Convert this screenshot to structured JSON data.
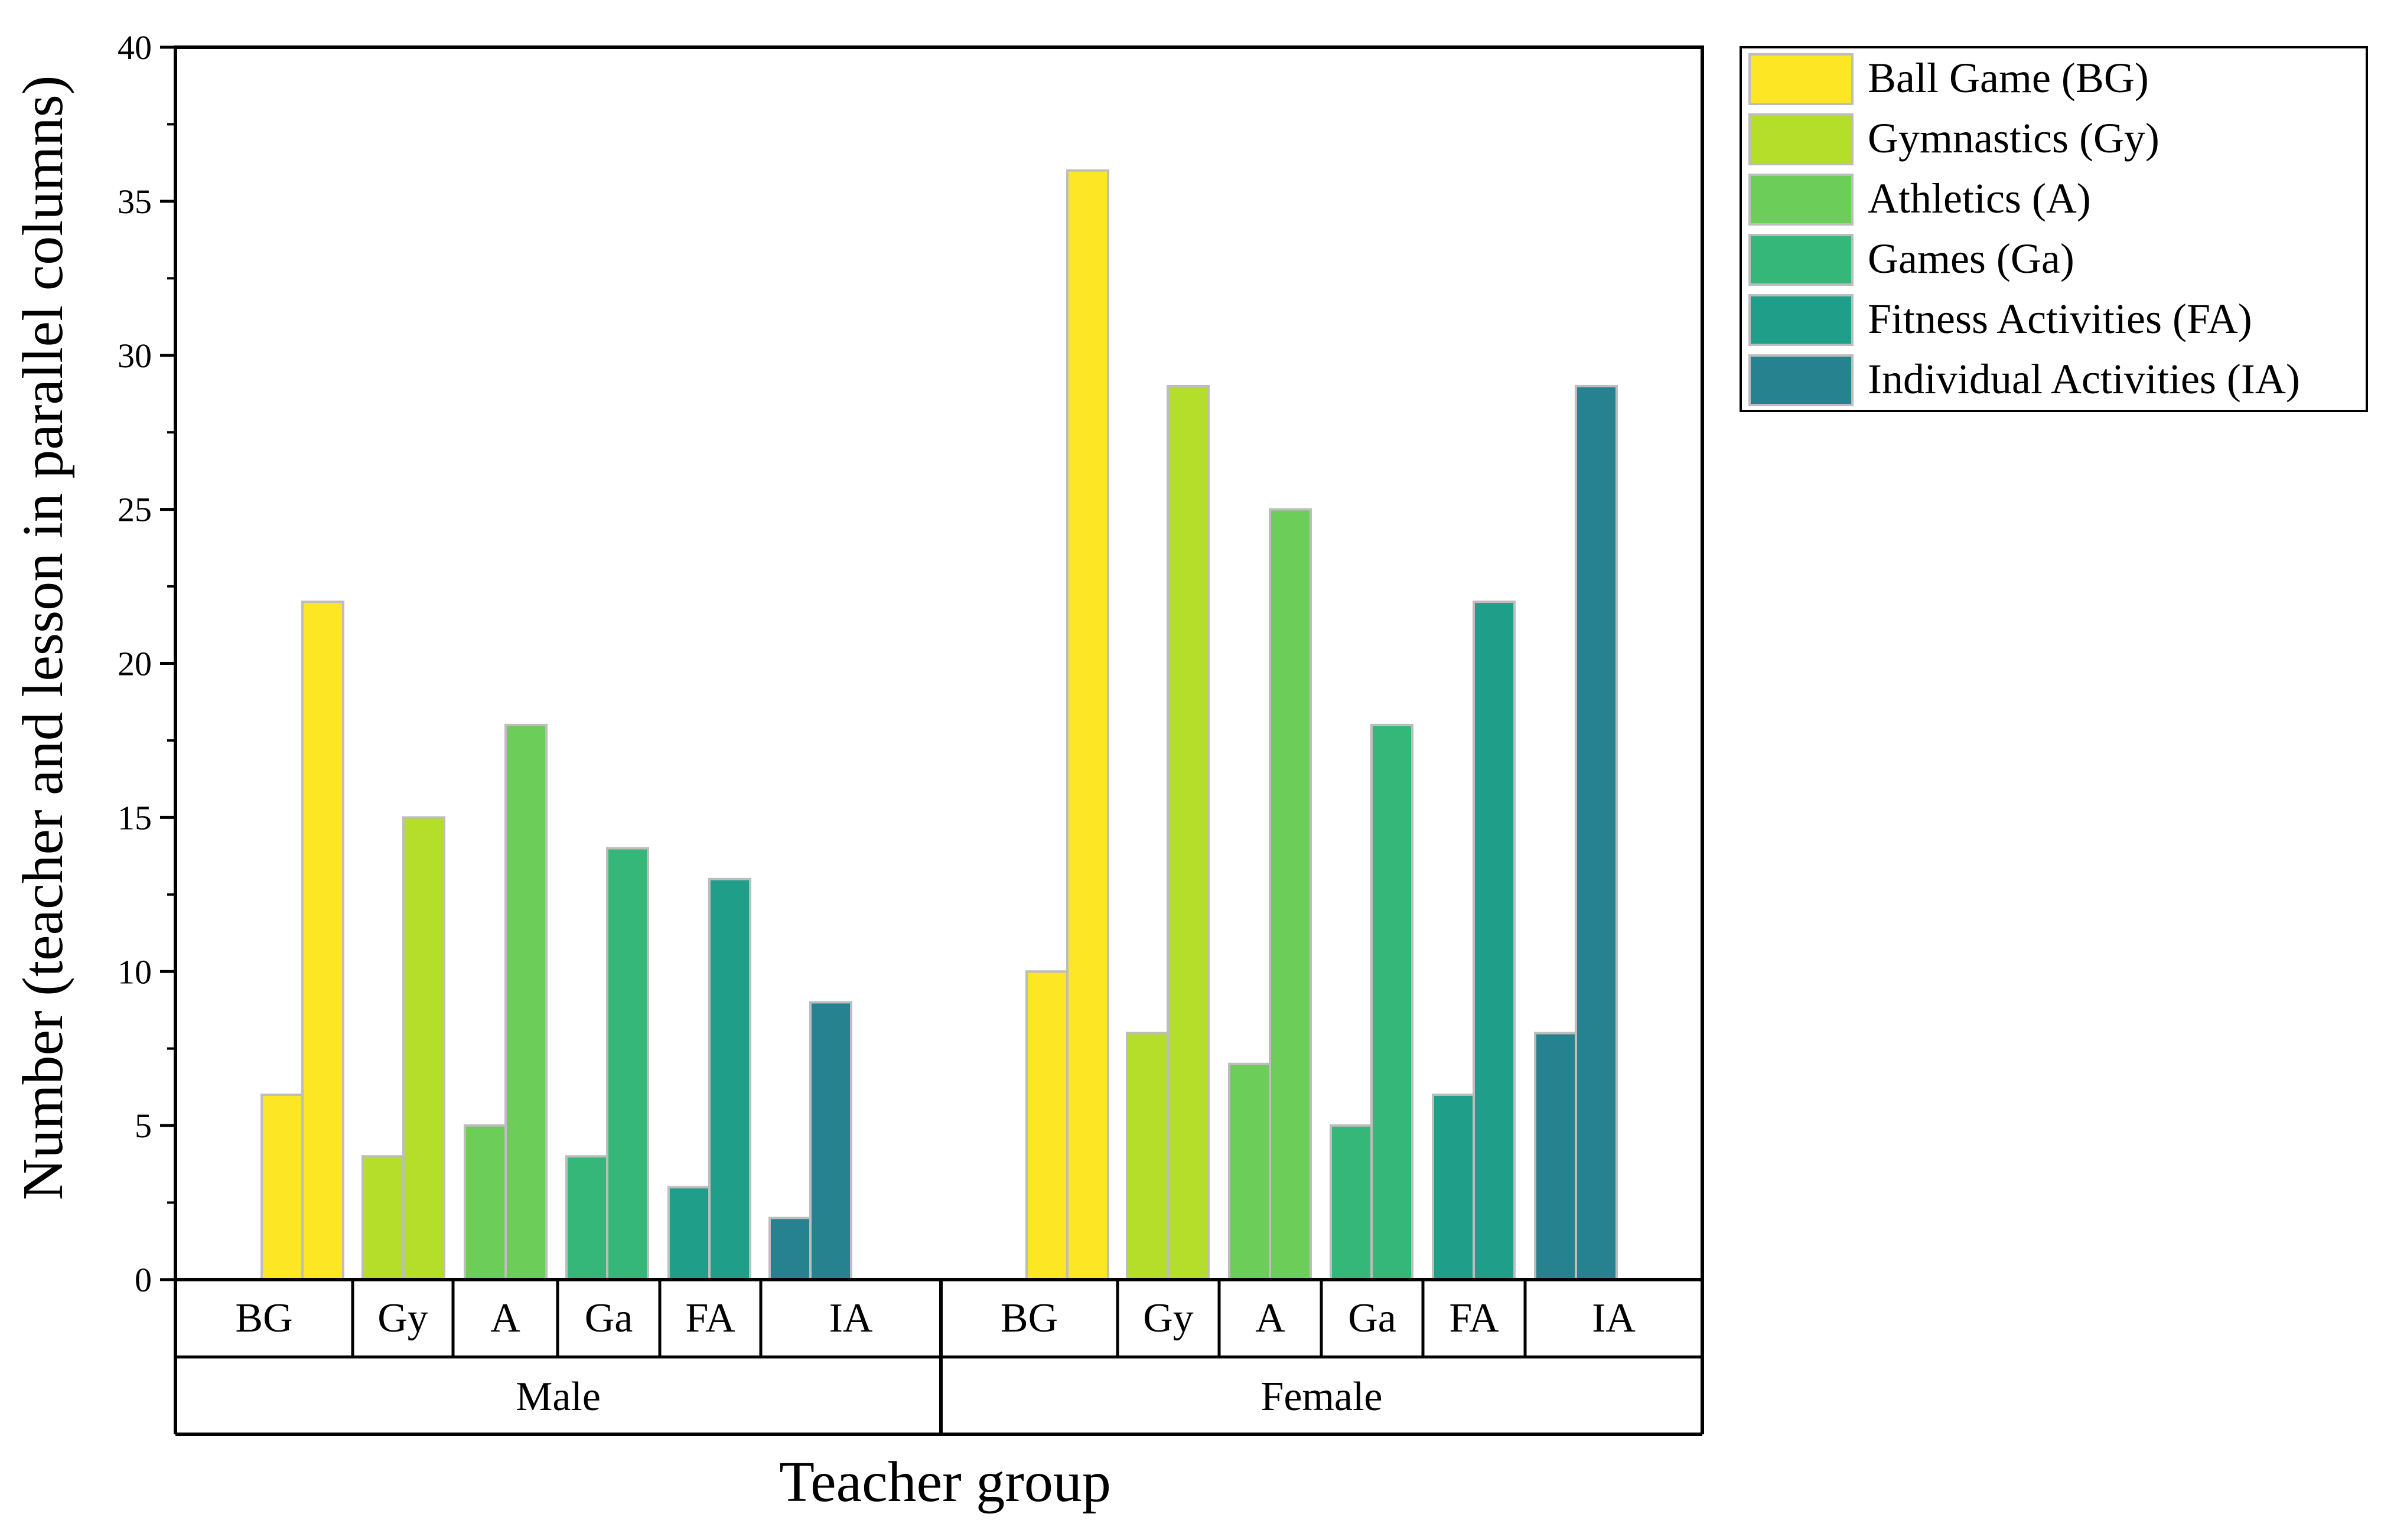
{
  "chart_data": {
    "type": "bar",
    "title": "",
    "xlabel": "Teacher group",
    "ylabel": "Number (teacher and lesson in parallel columns)",
    "ylim": [
      0,
      40
    ],
    "yticks": [
      "0",
      "5",
      "10",
      "15",
      "20",
      "25",
      "30",
      "35",
      "40"
    ],
    "groups": [
      {
        "name": "Male",
        "categories": [
          "BG",
          "Gy",
          "A",
          "Ga",
          "FA",
          "IA"
        ]
      },
      {
        "name": "Female",
        "categories": [
          "BG",
          "Gy",
          "A",
          "Ga",
          "FA",
          "IA"
        ]
      }
    ],
    "series": [
      {
        "name": "Ball Game (BG)",
        "color": "#FDE725",
        "teacher": [
          6,
          10
        ],
        "lesson": [
          22,
          36
        ]
      },
      {
        "name": "Gymnastics (Gy)",
        "color": "#B5DE2B",
        "teacher": [
          4,
          8
        ],
        "lesson": [
          15,
          29
        ]
      },
      {
        "name": "Athletics (A)",
        "color": "#6DCD59",
        "teacher": [
          5,
          7
        ],
        "lesson": [
          18,
          25
        ]
      },
      {
        "name": "Games (Ga)",
        "color": "#35B779",
        "teacher": [
          4,
          5
        ],
        "lesson": [
          14,
          18
        ]
      },
      {
        "name": "Fitness Activities (FA)",
        "color": "#1F9E89",
        "teacher": [
          3,
          6
        ],
        "lesson": [
          13,
          22
        ]
      },
      {
        "name": "Individual Activities (IA)",
        "color": "#26828E",
        "teacher": [
          2,
          8
        ],
        "lesson": [
          9,
          29
        ]
      }
    ],
    "legend_position": "top-right, outside plot"
  }
}
